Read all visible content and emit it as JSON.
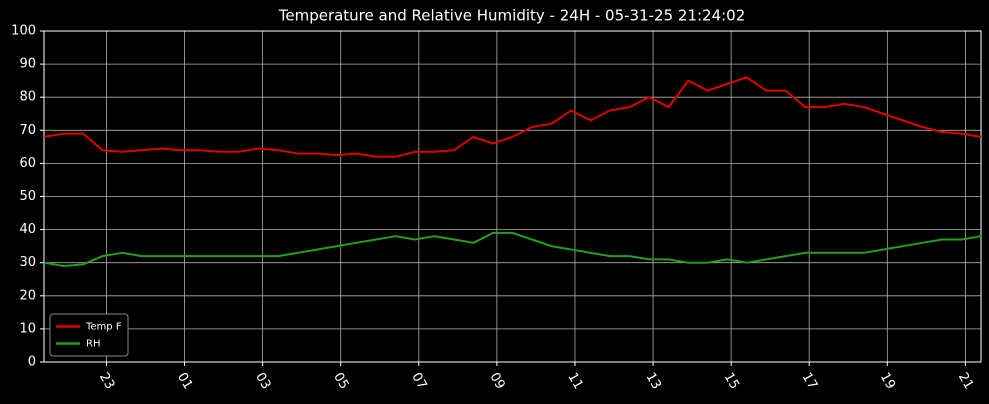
{
  "chart_data": {
    "type": "line",
    "title": "Temperature and Relative Humidity - 24H - 05-31-25 21:24:02",
    "x": [
      21.4,
      21.9,
      22.4,
      22.9,
      23.4,
      23.9,
      24.4,
      24.9,
      25.4,
      25.9,
      26.4,
      26.9,
      27.4,
      27.9,
      28.4,
      28.9,
      29.4,
      29.9,
      30.4,
      30.9,
      31.4,
      31.9,
      32.4,
      32.9,
      33.4,
      33.9,
      34.4,
      34.9,
      35.4,
      35.9,
      36.4,
      36.9,
      37.4,
      37.9,
      38.4,
      38.9,
      39.4,
      39.9,
      40.4,
      40.9,
      41.4,
      41.9,
      42.4,
      42.9,
      43.4,
      43.9,
      44.4,
      44.9,
      45.4
    ],
    "series": [
      {
        "name": "Temp F",
        "color": "#e00000",
        "values": [
          68,
          69,
          69,
          64,
          63.5,
          64,
          64.5,
          64,
          64,
          63.5,
          63.5,
          64.5,
          64,
          63,
          63,
          62.5,
          63,
          62,
          62,
          63.5,
          63.5,
          64,
          68,
          66,
          68,
          71,
          72,
          76,
          73,
          76,
          77,
          80,
          77,
          85,
          82,
          84,
          86,
          82,
          82,
          77,
          77,
          78,
          77,
          75,
          73,
          71,
          69.5,
          69,
          68
        ]
      },
      {
        "name": "RH",
        "color": "#1fa01f",
        "values": [
          30,
          29,
          29.5,
          32,
          33,
          32,
          32,
          32,
          32,
          32,
          32,
          32,
          32,
          33,
          34,
          35,
          36,
          37,
          38,
          37,
          38,
          37,
          36,
          39,
          39,
          37,
          35,
          34,
          33,
          32,
          32,
          31,
          31,
          30,
          30,
          31,
          30,
          31,
          32,
          33,
          33,
          33,
          33,
          34,
          35,
          36,
          37,
          37,
          38
        ]
      }
    ],
    "xlim": [
      21.4,
      45.4
    ],
    "xticks": [
      23,
      {
        "value": 25,
        "label": "01"
      },
      {
        "value": 27,
        "label": "03"
      },
      {
        "value": 29,
        "label": "05"
      },
      {
        "value": 31,
        "label": "07"
      },
      {
        "value": 33,
        "label": "09"
      },
      {
        "value": 35,
        "label": "11"
      },
      {
        "value": 37,
        "label": "13"
      },
      {
        "value": 39,
        "label": "15"
      },
      {
        "value": 41,
        "label": "17"
      },
      {
        "value": 43,
        "label": "19"
      },
      {
        "value": 45,
        "label": "21"
      }
    ],
    "ylim": [
      0,
      100
    ],
    "yticks": [
      0,
      10,
      20,
      30,
      40,
      50,
      60,
      70,
      80,
      90,
      100
    ],
    "grid": true,
    "legend": "lower left"
  }
}
